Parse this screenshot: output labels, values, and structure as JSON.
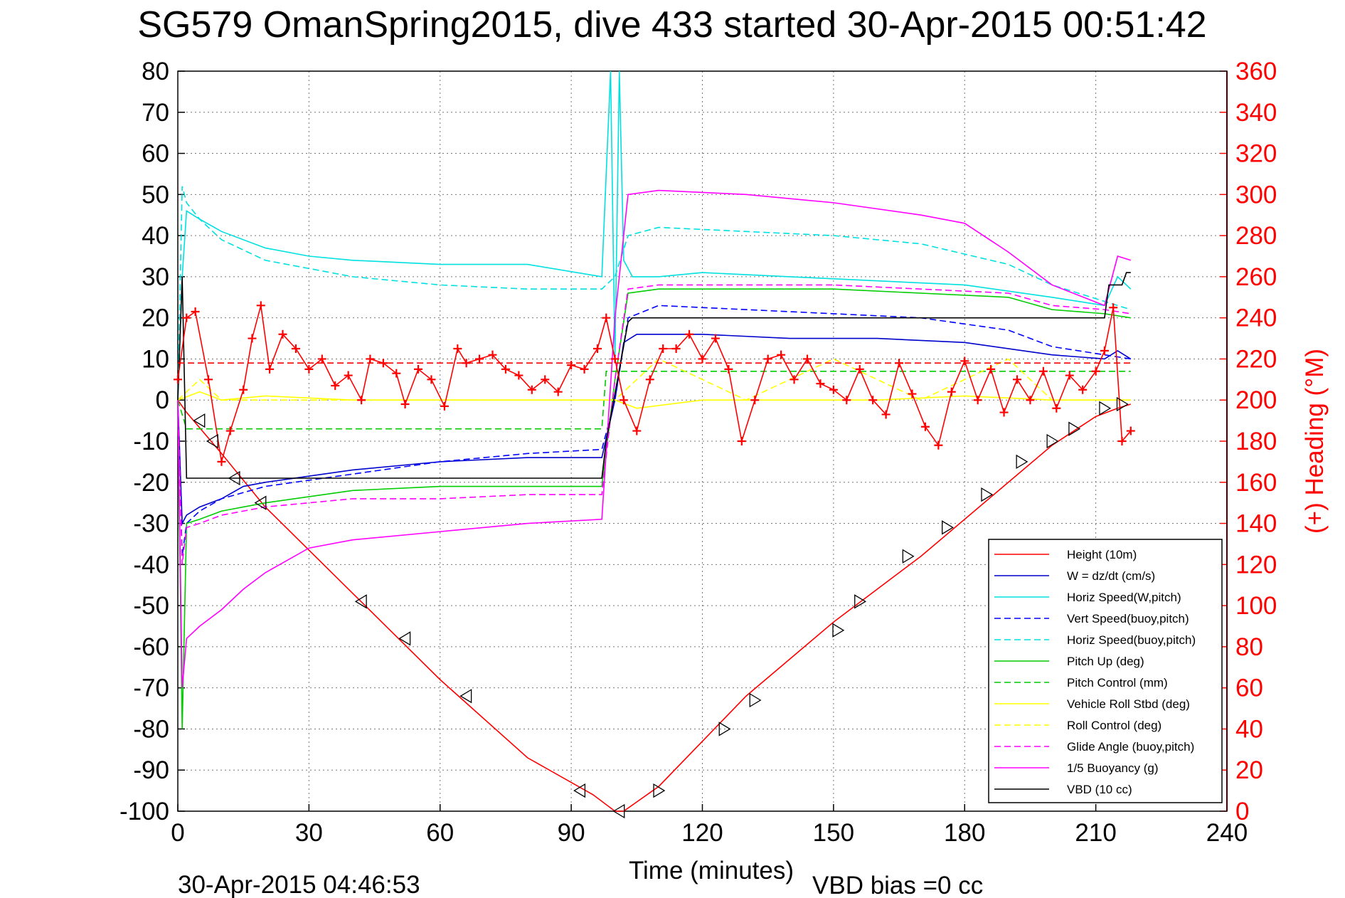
{
  "chart_data": {
    "type": "line",
    "title": "SG579 OmanSpring2015, dive 433 started 30-Apr-2015 00:51:42",
    "xlabel": "Time (minutes)",
    "ylabel": "",
    "y2label": "(+) Heading (°M)",
    "footer_left": "30-Apr-2015 04:46:53",
    "footer_right": "VBD bias =0 cc",
    "xlim": [
      0,
      240
    ],
    "ylim": [
      -100,
      80
    ],
    "y2lim": [
      0,
      360
    ],
    "xticks": [
      0,
      30,
      60,
      90,
      120,
      150,
      180,
      210,
      240
    ],
    "yticks": [
      80,
      70,
      60,
      50,
      40,
      30,
      20,
      10,
      0,
      -10,
      -20,
      -30,
      -40,
      -50,
      -60,
      -70,
      -80,
      -90,
      -100
    ],
    "y2ticks": [
      360,
      340,
      320,
      300,
      280,
      260,
      240,
      220,
      200,
      180,
      160,
      140,
      120,
      100,
      80,
      60,
      40,
      20,
      0
    ],
    "grid": true,
    "legend_position": "bottom-right",
    "series": [
      {
        "name": "Height (10m)",
        "color": "#ff0000",
        "style": "solid",
        "x": [
          0,
          2,
          10,
          20,
          40,
          60,
          80,
          95,
          100,
          102,
          110,
          130,
          150,
          170,
          190,
          200,
          210,
          215,
          218
        ],
        "y": [
          0,
          -3,
          -13,
          -26,
          -47,
          -68,
          -87,
          -96,
          -100,
          -100,
          -94,
          -72,
          -54,
          -38,
          -20,
          -11,
          -4,
          -2,
          -1
        ]
      },
      {
        "name": "W = dz/dt (cm/s)",
        "color": "#0000cc",
        "style": "solid",
        "x": [
          0,
          1,
          2,
          5,
          10,
          15,
          20,
          40,
          60,
          80,
          97,
          100,
          102,
          105,
          120,
          140,
          160,
          180,
          200,
          212,
          215,
          218
        ],
        "y": [
          0,
          -30,
          -28,
          -26,
          -24,
          -21,
          -20,
          -17,
          -15,
          -14,
          -14,
          0,
          14,
          16,
          16,
          15,
          15,
          14,
          11,
          10,
          12,
          10
        ]
      },
      {
        "name": "Horiz Speed(W,pitch)",
        "color": "#00e0e0",
        "style": "solid",
        "x": [
          0,
          1,
          2,
          5,
          10,
          20,
          30,
          40,
          60,
          80,
          97,
          99,
          100,
          101,
          102,
          104,
          110,
          120,
          140,
          160,
          180,
          200,
          212,
          215,
          218
        ],
        "y": [
          0,
          30,
          46,
          44,
          41,
          37,
          35,
          34,
          33,
          33,
          30,
          80,
          10,
          80,
          34,
          30,
          30,
          31,
          30,
          29,
          28,
          25,
          23,
          30,
          27
        ]
      },
      {
        "name": "Vert Speed(buoy,pitch)",
        "color": "#0000ff",
        "style": "dashed",
        "x": [
          0,
          1,
          2,
          5,
          10,
          20,
          40,
          60,
          80,
          97,
          100,
          103,
          110,
          130,
          150,
          170,
          190,
          200,
          212,
          218
        ],
        "y": [
          0,
          -38,
          -30,
          -27,
          -24,
          -21,
          -18,
          -15,
          -13,
          -12,
          0,
          20,
          23,
          22,
          21,
          20,
          17,
          13,
          11,
          10
        ]
      },
      {
        "name": "Horiz Speed(buoy,pitch)",
        "color": "#00e0e0",
        "style": "dashed",
        "x": [
          0,
          1,
          2,
          5,
          10,
          20,
          40,
          60,
          80,
          97,
          100,
          103,
          110,
          130,
          150,
          170,
          190,
          200,
          212,
          218
        ],
        "y": [
          0,
          52,
          48,
          44,
          39,
          34,
          30,
          28,
          27,
          27,
          30,
          40,
          42,
          41,
          40,
          38,
          33,
          28,
          24,
          22
        ]
      },
      {
        "name": "Pitch Up (deg)",
        "color": "#00cc00",
        "style": "solid",
        "x": [
          0,
          1,
          2,
          5,
          10,
          20,
          40,
          60,
          80,
          97,
          100,
          103,
          110,
          130,
          150,
          170,
          190,
          200,
          212,
          218
        ],
        "y": [
          0,
          -80,
          -30,
          -29,
          -27,
          -25,
          -22,
          -21,
          -21,
          -21,
          5,
          26,
          27,
          27,
          27,
          26,
          25,
          22,
          21,
          20
        ]
      },
      {
        "name": "Pitch Control (mm)",
        "color": "#00cc00",
        "style": "dashed",
        "x": [
          0,
          2,
          97,
          98,
          100,
          218
        ],
        "y": [
          0,
          -7,
          -7,
          7,
          7,
          7
        ]
      },
      {
        "name": "Vehicle Roll Stbd (deg)",
        "color": "#ffff00",
        "style": "solid",
        "x": [
          0,
          5,
          10,
          20,
          40,
          60,
          80,
          97,
          100,
          105,
          120,
          140,
          160,
          180,
          200,
          212,
          218
        ],
        "y": [
          0,
          2,
          0,
          1,
          0,
          0,
          0,
          0,
          0,
          -2,
          0,
          0,
          0,
          1,
          0,
          0,
          0
        ]
      },
      {
        "name": "Roll Control (deg)",
        "color": "#ffff00",
        "style": "dashed",
        "x": [
          0,
          5,
          10,
          20,
          40,
          60,
          80,
          97,
          100,
          110,
          130,
          150,
          170,
          190,
          200,
          212,
          218
        ],
        "y": [
          0,
          5,
          0,
          0,
          0,
          0,
          0,
          0,
          0,
          10,
          0,
          10,
          0,
          10,
          0,
          0,
          0
        ]
      },
      {
        "name": "Glide Angle (buoy,pitch)",
        "color": "#ff00ff",
        "style": "dashed",
        "x": [
          0,
          1,
          2,
          5,
          10,
          20,
          40,
          60,
          80,
          97,
          100,
          103,
          110,
          130,
          150,
          170,
          190,
          200,
          212,
          218
        ],
        "y": [
          0,
          -40,
          -31,
          -30,
          -28,
          -26,
          -24,
          -24,
          -23,
          -23,
          5,
          27,
          28,
          28,
          28,
          27,
          26,
          23,
          22,
          21
        ]
      },
      {
        "name": "1/5 Buoyancy (g)",
        "color": "#ff00ff",
        "style": "solid",
        "x": [
          0,
          1,
          2,
          5,
          10,
          15,
          20,
          25,
          30,
          40,
          60,
          80,
          97,
          100,
          103,
          110,
          130,
          150,
          170,
          180,
          190,
          200,
          212,
          215,
          218
        ],
        "y": [
          0,
          -70,
          -58,
          -55,
          -51,
          -46,
          -42,
          -39,
          -36,
          -34,
          -32,
          -30,
          -29,
          20,
          50,
          51,
          50,
          48,
          45,
          43,
          36,
          28,
          23,
          35,
          34
        ]
      },
      {
        "name": "VBD (10 cc)",
        "color": "#000000",
        "style": "solid",
        "x": [
          0,
          1,
          2,
          97,
          98,
          103,
          104,
          212,
          213,
          216,
          217,
          218
        ],
        "y": [
          0,
          30,
          -19,
          -19,
          -10,
          19,
          20,
          20,
          28,
          28,
          31,
          31
        ]
      },
      {
        "name": "Heading",
        "axis": "right",
        "color": "#ff0000",
        "style": "markers",
        "x": [
          0,
          2,
          4,
          7,
          10,
          12,
          15,
          17,
          19,
          21,
          24,
          27,
          30,
          33,
          36,
          39,
          42,
          44,
          47,
          50,
          52,
          55,
          58,
          61,
          64,
          66,
          69,
          72,
          75,
          78,
          81,
          84,
          87,
          90,
          93,
          96,
          98,
          100,
          102,
          105,
          108,
          111,
          114,
          117,
          120,
          123,
          126,
          129,
          132,
          135,
          138,
          141,
          144,
          147,
          150,
          153,
          156,
          159,
          162,
          165,
          168,
          171,
          174,
          177,
          180,
          183,
          186,
          189,
          192,
          195,
          198,
          201,
          204,
          207,
          210,
          212,
          214,
          216,
          218
        ],
        "y": [
          210,
          240,
          243,
          210,
          170,
          185,
          205,
          230,
          246,
          215,
          232,
          225,
          215,
          220,
          207,
          212,
          200,
          220,
          218,
          213,
          198,
          215,
          210,
          197,
          225,
          218,
          220,
          222,
          215,
          212,
          205,
          210,
          204,
          217,
          215,
          225,
          240,
          220,
          200,
          185,
          210,
          225,
          225,
          232,
          220,
          230,
          215,
          180,
          200,
          220,
          222,
          210,
          220,
          208,
          205,
          200,
          215,
          200,
          193,
          218,
          203,
          187,
          178,
          204,
          219,
          200,
          215,
          194,
          210,
          200,
          214,
          196,
          212,
          205,
          214,
          224,
          245,
          180,
          185
        ]
      },
      {
        "name": "Heading target",
        "axis": "right",
        "color": "#ff0000",
        "style": "dashed",
        "x": [
          0,
          218
        ],
        "y": [
          218,
          218
        ]
      }
    ],
    "markers": [
      {
        "symbol": "triangle-left",
        "x": [
          5,
          8,
          13,
          19,
          42,
          52,
          66,
          92,
          101
        ],
        "y": [
          -5,
          -10,
          -19,
          -25,
          -49,
          -58,
          -72,
          -95,
          -100
        ]
      },
      {
        "symbol": "triangle-right",
        "x": [
          110,
          125,
          132,
          151,
          156,
          167,
          176,
          185,
          193,
          200,
          205,
          212,
          216
        ],
        "y": [
          -95,
          -80,
          -73,
          -56,
          -49,
          -38,
          -31,
          -23,
          -15,
          -10,
          -7,
          -2,
          -1
        ]
      }
    ]
  }
}
